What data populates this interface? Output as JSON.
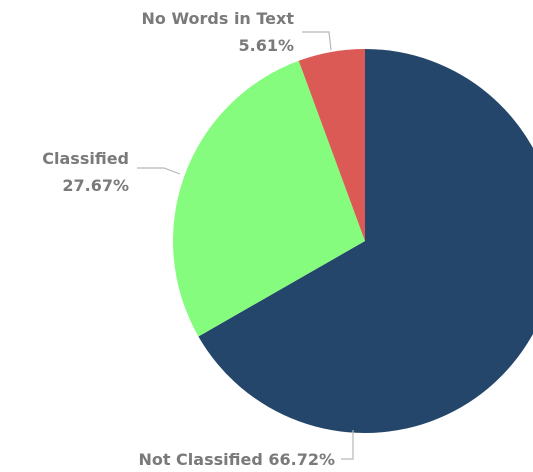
{
  "chart_data": {
    "type": "pie",
    "title": "",
    "start_angle_deg": 0,
    "direction": "clockwise",
    "slices": [
      {
        "label": "Not Classified",
        "value": 66.72,
        "display": "66.72%",
        "color": "#25466b"
      },
      {
        "label": "Classified",
        "value": 27.67,
        "display": "27.67%",
        "color": "#86fc7e"
      },
      {
        "label": "No Words in Text",
        "value": 5.61,
        "display": "5.61%",
        "color": "#dc5a55"
      }
    ]
  }
}
